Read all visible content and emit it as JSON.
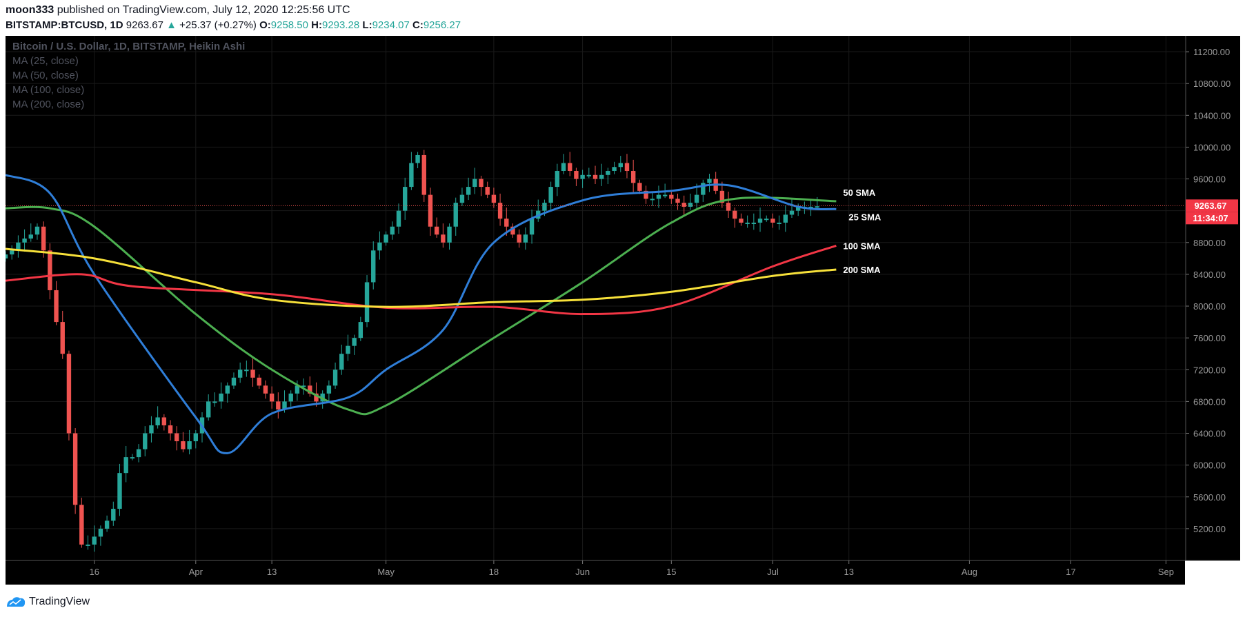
{
  "header": {
    "author": "moon333",
    "published_text": "published on TradingView.com, July 12, 2020 12:25:56 UTC",
    "symbol": "BITSTAMP:BTCUSD, 1D",
    "last": "9263.67",
    "change_arrow": "▲",
    "change": "+25.37 (+0.27%)",
    "o_label": "O:",
    "o_value": "9258.50",
    "h_label": "H:",
    "h_value": "9293.28",
    "l_label": "L:",
    "l_value": "9234.07",
    "c_label": "C:",
    "c_value": "9256.27"
  },
  "footer": {
    "brand": "TradingView"
  },
  "colors": {
    "background": "#000000",
    "up": "#26a69a",
    "down": "#ef5350",
    "ma25": "#2f7ed8",
    "ma50": "#4caf50",
    "ma100": "#f23645",
    "ma200": "#f7e13a",
    "grid": "#1a1a1a"
  },
  "chart_data": {
    "type": "candlestick",
    "title": "Bitcoin / U.S. Dollar, 1D, BITSTAMP, Heikin Ashi",
    "legend": [
      "MA (25, close)",
      "MA (50, close)",
      "MA (100, close)",
      "MA (200, close)"
    ],
    "price_label": "9263.67",
    "countdown_label": "11:34:07",
    "current_price": 9263.67,
    "ylim": [
      4800,
      11400
    ],
    "y_ticks": [
      5200,
      5600,
      6000,
      6400,
      6800,
      7200,
      7600,
      8000,
      8400,
      8800,
      9200,
      9600,
      10000,
      10400,
      10800,
      11200
    ],
    "y_tick_labels": [
      "5200.00",
      "5600.00",
      "6000.00",
      "6400.00",
      "6800.00",
      "7200.00",
      "7600.00",
      "8000.00",
      "8400.00",
      "8800.00",
      "9200.00",
      "9600.00",
      "10000.00",
      "10400.00",
      "10800.00",
      "11200.00"
    ],
    "xlim": [
      "2020-03-02",
      "2020-09-04"
    ],
    "x_ticks": [
      "2020-03-16",
      "2020-04-01",
      "2020-04-13",
      "2020-05-01",
      "2020-05-18",
      "2020-06-01",
      "2020-06-15",
      "2020-07-01",
      "2020-07-13",
      "2020-08-01",
      "2020-08-17",
      "2020-09-01"
    ],
    "x_tick_labels": [
      "16",
      "Apr",
      "13",
      "May",
      "18",
      "Jun",
      "15",
      "Jul",
      "13",
      "Aug",
      "17",
      "Sep"
    ],
    "candles": {
      "start_date": "2020-03-02",
      "open": [
        8600,
        8650,
        8700,
        8800,
        8850,
        8900,
        9000,
        8700,
        8200,
        7800,
        7400,
        6400,
        5500,
        5000,
        5000,
        5100,
        5200,
        5300,
        5450,
        5900,
        6100,
        6100,
        6200,
        6400,
        6500,
        6600,
        6500,
        6400,
        6300,
        6200,
        6300,
        6400,
        6600,
        6800,
        6800,
        6900,
        7000,
        7100,
        7200,
        7200,
        7100,
        7000,
        6900,
        6800,
        6700,
        6800,
        6900,
        7000,
        7000,
        6900,
        6800,
        6900,
        7000,
        7200,
        7400,
        7500,
        7600,
        7800,
        8300,
        8700,
        8800,
        8900,
        9000,
        9200,
        9500,
        9800,
        9900,
        9400,
        9000,
        8900,
        8800,
        9000,
        9300,
        9400,
        9500,
        9600,
        9500,
        9400,
        9300,
        9100,
        9000,
        8900,
        8800,
        8900,
        9100,
        9200,
        9300,
        9500,
        9700,
        9800,
        9700,
        9600,
        9650,
        9650,
        9600,
        9650,
        9700,
        9750,
        9800,
        9700,
        9550,
        9450,
        9350,
        9350,
        9400,
        9400,
        9350,
        9300,
        9250,
        9300,
        9400,
        9550,
        9600,
        9450,
        9300,
        9200,
        9100,
        9050,
        9050,
        9050,
        9100,
        9100,
        9050,
        9050,
        9150,
        9200,
        9250,
        9250,
        9250
      ],
      "close": [
        8650,
        8700,
        8800,
        8850,
        8900,
        9000,
        8700,
        8200,
        7800,
        7400,
        6400,
        5500,
        5000,
        5000,
        5100,
        5200,
        5300,
        5450,
        5900,
        6100,
        6100,
        6200,
        6400,
        6500,
        6600,
        6500,
        6400,
        6300,
        6200,
        6300,
        6400,
        6600,
        6800,
        6800,
        6900,
        7000,
        7100,
        7200,
        7200,
        7100,
        7000,
        6900,
        6800,
        6700,
        6800,
        6900,
        7000,
        7000,
        6900,
        6800,
        6900,
        7000,
        7200,
        7400,
        7500,
        7600,
        7800,
        8300,
        8700,
        8800,
        8900,
        9000,
        9200,
        9500,
        9800,
        9900,
        9400,
        9000,
        8900,
        8800,
        9000,
        9300,
        9400,
        9500,
        9600,
        9500,
        9400,
        9300,
        9100,
        9000,
        8900,
        8800,
        8900,
        9100,
        9200,
        9300,
        9500,
        9700,
        9800,
        9700,
        9600,
        9650,
        9650,
        9600,
        9650,
        9700,
        9750,
        9800,
        9700,
        9550,
        9450,
        9350,
        9350,
        9400,
        9400,
        9350,
        9300,
        9250,
        9300,
        9400,
        9550,
        9600,
        9450,
        9300,
        9200,
        9100,
        9050,
        9050,
        9050,
        9100,
        9100,
        9050,
        9050,
        9150,
        9200,
        9250,
        9250,
        9250,
        9256
      ]
    },
    "series": [
      {
        "name": "50 SMA",
        "color": "#4caf50",
        "dates": [
          "2020-03-02",
          "2020-03-09",
          "2020-03-16",
          "2020-04-01",
          "2020-04-13",
          "2020-04-25",
          "2020-05-01",
          "2020-05-18",
          "2020-06-01",
          "2020-06-15",
          "2020-06-25",
          "2020-07-11"
        ],
        "values": [
          9230,
          9230,
          9000,
          7900,
          7200,
          6700,
          6750,
          7600,
          8300,
          9050,
          9350,
          9320
        ]
      },
      {
        "name": "25 SMA",
        "color": "#2f7ed8",
        "dates": [
          "2020-03-02",
          "2020-03-09",
          "2020-03-16",
          "2020-04-01",
          "2020-04-06",
          "2020-04-13",
          "2020-04-25",
          "2020-05-01",
          "2020-05-10",
          "2020-05-18",
          "2020-06-01",
          "2020-06-15",
          "2020-06-24",
          "2020-07-05",
          "2020-07-11"
        ],
        "values": [
          9650,
          9420,
          8400,
          6600,
          6150,
          6650,
          6850,
          7200,
          7700,
          8800,
          9330,
          9450,
          9520,
          9250,
          9220
        ]
      },
      {
        "name": "100 SMA",
        "color": "#f23645",
        "dates": [
          "2020-03-02",
          "2020-03-14",
          "2020-03-22",
          "2020-04-13",
          "2020-05-01",
          "2020-05-18",
          "2020-06-01",
          "2020-06-15",
          "2020-07-01",
          "2020-07-11"
        ],
        "values": [
          8320,
          8400,
          8250,
          8150,
          7980,
          7990,
          7900,
          8000,
          8500,
          8760
        ]
      },
      {
        "name": "200 SMA",
        "color": "#f7e13a",
        "dates": [
          "2020-03-02",
          "2020-03-16",
          "2020-04-01",
          "2020-04-13",
          "2020-05-01",
          "2020-05-18",
          "2020-06-01",
          "2020-06-15",
          "2020-07-01",
          "2020-07-11"
        ],
        "values": [
          8720,
          8600,
          8300,
          8080,
          7990,
          8050,
          8080,
          8180,
          8380,
          8460
        ]
      }
    ]
  }
}
